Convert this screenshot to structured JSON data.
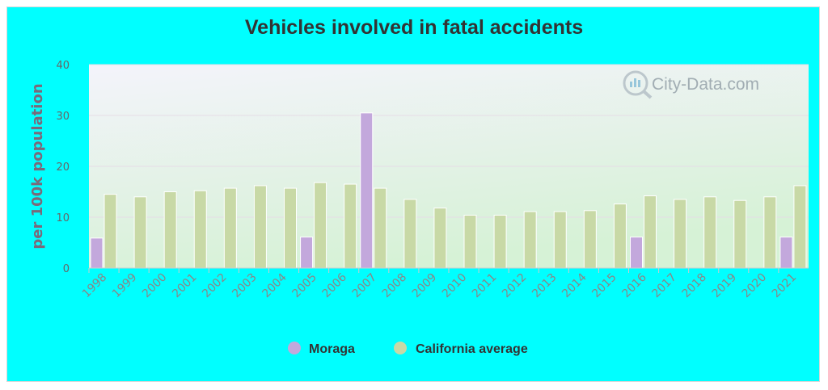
{
  "colors": {
    "background": "#00ffff",
    "moraga": "#c3a8dc",
    "california": "#c8d9a6",
    "title": "#333333"
  },
  "watermark": "City-Data.com",
  "chart_data": {
    "type": "bar",
    "title": "Vehicles involved in fatal accidents",
    "xlabel": "",
    "ylabel": "per 100k population",
    "ylim": [
      0,
      40
    ],
    "yticks": [
      0,
      10,
      20,
      30,
      40
    ],
    "grid": true,
    "legend_position": "bottom",
    "categories": [
      "1998",
      "1999",
      "2000",
      "2001",
      "2002",
      "2003",
      "2004",
      "2005",
      "2006",
      "2007",
      "2008",
      "2009",
      "2010",
      "2011",
      "2012",
      "2013",
      "2014",
      "2015",
      "2016",
      "2017",
      "2018",
      "2019",
      "2020",
      "2021"
    ],
    "series": [
      {
        "name": "Moraga",
        "color": "#c3a8dc",
        "values": [
          5.9,
          null,
          null,
          null,
          null,
          null,
          null,
          6.1,
          null,
          30.5,
          null,
          null,
          null,
          null,
          null,
          null,
          null,
          null,
          6.1,
          null,
          null,
          null,
          null,
          6.1
        ]
      },
      {
        "name": "California average",
        "color": "#c8d9a6",
        "values": [
          14.5,
          14.0,
          15.0,
          15.2,
          15.7,
          16.2,
          15.7,
          16.8,
          16.5,
          15.7,
          13.5,
          11.8,
          10.4,
          10.4,
          11.1,
          11.1,
          11.3,
          12.6,
          14.2,
          13.5,
          14.0,
          13.3,
          14.0,
          16.2
        ]
      }
    ]
  }
}
